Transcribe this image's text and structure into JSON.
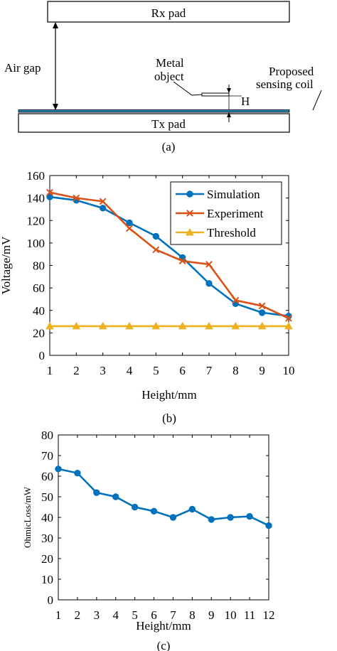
{
  "diagram": {
    "rx_label": "Rx pad",
    "tx_label": "Tx pad",
    "air_gap_label": "Air gap",
    "metal_label_1": "Metal",
    "metal_label_2": "object",
    "h_label": "H",
    "coil_label_1": "Proposed",
    "coil_label_2": "sensing coil",
    "caption": "(a)"
  },
  "chart_data": [
    {
      "type": "line",
      "caption": "(b)",
      "xlabel": "Height/mm",
      "ylabel": "Voltage/mV",
      "xlim": [
        1,
        10
      ],
      "ylim": [
        0,
        160
      ],
      "xticks": [
        1,
        2,
        3,
        4,
        5,
        6,
        7,
        8,
        9,
        10
      ],
      "yticks": [
        0,
        20,
        40,
        60,
        80,
        100,
        120,
        140,
        160
      ],
      "legend_position": "top-right",
      "grid": false,
      "x": [
        1,
        2,
        3,
        4,
        5,
        6,
        7,
        8,
        9,
        10
      ],
      "series": [
        {
          "name": "Simulation",
          "color": "#0072BD",
          "marker": "circle",
          "values": [
            141,
            138,
            131,
            118,
            106,
            87,
            64,
            46,
            38,
            35
          ]
        },
        {
          "name": "Experiment",
          "color": "#D95319",
          "marker": "x",
          "values": [
            145,
            140,
            137,
            113,
            94,
            84,
            81,
            49,
            44,
            33
          ]
        },
        {
          "name": "Threshold",
          "color": "#EDB120",
          "marker": "triangle",
          "values": [
            26,
            26,
            26,
            26,
            26,
            26,
            26,
            26,
            26,
            26
          ]
        }
      ]
    },
    {
      "type": "line",
      "caption": "(c)",
      "xlabel": "Height/mm",
      "ylabel": "OhmicLoss/mW",
      "xlim": [
        1,
        12
      ],
      "ylim": [
        0,
        80
      ],
      "xticks": [
        1,
        2,
        3,
        4,
        5,
        6,
        7,
        8,
        9,
        10,
        11,
        12
      ],
      "yticks": [
        0,
        10,
        20,
        30,
        40,
        50,
        60,
        70,
        80
      ],
      "grid": false,
      "x": [
        1,
        2,
        3,
        4,
        5,
        6,
        7,
        8,
        9,
        10,
        11,
        12
      ],
      "series": [
        {
          "color": "#0072BD",
          "marker": "circle",
          "values": [
            63.5,
            61.5,
            52,
            50,
            45,
            43,
            40,
            44,
            39,
            40,
            40.5,
            36
          ]
        }
      ]
    }
  ]
}
